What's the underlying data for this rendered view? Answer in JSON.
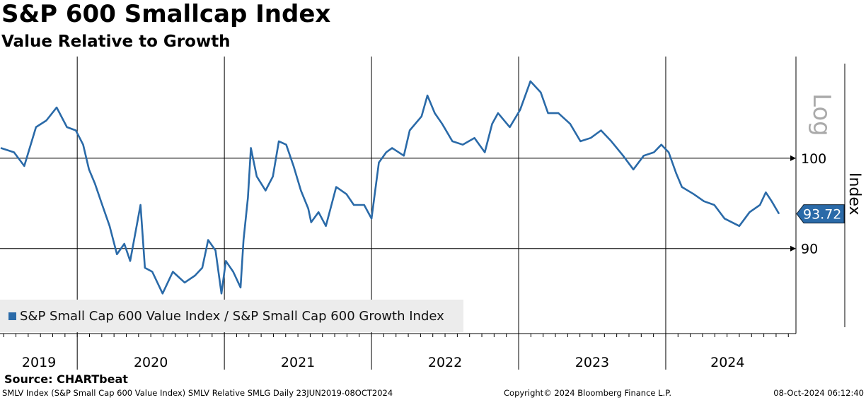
{
  "header": {
    "title": "S&P 600 Smallcap Index",
    "subtitle": "Value Relative to Growth"
  },
  "footer": {
    "source": "Source: CHARTbeat",
    "description": "SMLV Index (S&P Small Cap 600 Value Index) SMLV Relative SMLG  Daily 23JUN2019-08OCT2024",
    "copyright": "Copyright© 2024 Bloomberg Finance L.P.",
    "timestamp": "08-Oct-2024 06:12:40"
  },
  "colors": {
    "series": "#2a6aa8",
    "grid": "#000000",
    "legend_bg": "#ececec"
  },
  "chart_data": {
    "type": "line",
    "title": "S&P 600 Smallcap Index",
    "subtitle": "Value Relative to Growth",
    "ylabel": "Index",
    "yscale": "log",
    "yscale_label": "Log",
    "ylim": [
      81.5,
      112.6
    ],
    "yticks": [
      {
        "value": 90,
        "label": "90"
      },
      {
        "value": 100,
        "label": "100"
      }
    ],
    "xlim": [
      2019.475,
      2024.885
    ],
    "year_boundaries": [
      2020,
      2021,
      2022,
      2023,
      2024
    ],
    "xtick_labels": [
      {
        "x": 2019.74,
        "label": "2019"
      },
      {
        "x": 2020.5,
        "label": "2020"
      },
      {
        "x": 2021.5,
        "label": "2021"
      },
      {
        "x": 2022.5,
        "label": "2022"
      },
      {
        "x": 2023.5,
        "label": "2023"
      },
      {
        "x": 2024.42,
        "label": "2024"
      }
    ],
    "legend": {
      "position": "bottom-left",
      "entries": [
        "S&P Small Cap 600 Value Index / S&P Small Cap 600 Growth Index"
      ]
    },
    "last_value": {
      "value": 93.72,
      "label": "93.72"
    },
    "series": [
      {
        "name": "S&P Small Cap 600 Value Index / S&P Small Cap 600 Growth Index",
        "x": [
          2019.48,
          2019.57,
          2019.64,
          2019.72,
          2019.79,
          2019.86,
          2019.93,
          2019.99,
          2020.04,
          2020.08,
          2020.12,
          2020.17,
          2020.22,
          2020.27,
          2020.32,
          2020.36,
          2020.43,
          2020.46,
          2020.51,
          2020.58,
          2020.65,
          2020.73,
          2020.8,
          2020.85,
          2020.89,
          2020.94,
          2020.98,
          2021.01,
          2021.06,
          2021.11,
          2021.13,
          2021.16,
          2021.18,
          2021.22,
          2021.28,
          2021.33,
          2021.37,
          2021.42,
          2021.47,
          2021.52,
          2021.57,
          2021.59,
          2021.64,
          2021.69,
          2021.76,
          2021.83,
          2021.88,
          2021.95,
          2022.0,
          2022.05,
          2022.1,
          2022.14,
          2022.22,
          2022.26,
          2022.34,
          2022.38,
          2022.43,
          2022.48,
          2022.55,
          2022.62,
          2022.7,
          2022.77,
          2022.82,
          2022.86,
          2022.94,
          2023.01,
          2023.08,
          2023.15,
          2023.2,
          2023.27,
          2023.35,
          2023.42,
          2023.49,
          2023.56,
          2023.63,
          2023.71,
          2023.78,
          2023.85,
          2023.92,
          2023.97,
          2024.02,
          2024.07,
          2024.11,
          2024.19,
          2024.26,
          2024.33,
          2024.4,
          2024.5,
          2024.57,
          2024.64,
          2024.68,
          2024.72,
          2024.77
        ],
        "values": [
          101.2,
          100.7,
          99.1,
          103.7,
          104.5,
          106.1,
          103.7,
          103.3,
          101.6,
          98.7,
          97.1,
          94.7,
          92.4,
          89.4,
          90.5,
          88.7,
          94.7,
          88.0,
          87.6,
          85.4,
          87.6,
          86.5,
          87.2,
          88.0,
          90.9,
          89.8,
          85.4,
          88.7,
          87.6,
          86.0,
          90.9,
          95.5,
          101.2,
          97.9,
          96.3,
          97.9,
          102.0,
          101.6,
          99.1,
          96.3,
          94.3,
          92.8,
          93.9,
          92.4,
          96.7,
          95.9,
          94.7,
          94.7,
          93.2,
          99.5,
          100.7,
          101.2,
          100.3,
          103.3,
          105.0,
          107.6,
          105.4,
          104.1,
          102.0,
          101.6,
          102.4,
          100.7,
          104.1,
          105.4,
          103.7,
          105.8,
          109.4,
          108.0,
          105.4,
          105.4,
          104.1,
          102.0,
          102.4,
          103.3,
          102.0,
          100.3,
          98.7,
          100.3,
          100.7,
          101.6,
          100.7,
          98.3,
          96.7,
          95.9,
          95.1,
          94.7,
          93.2,
          92.4,
          93.9,
          94.7,
          96.1,
          95.1,
          93.72
        ]
      }
    ]
  }
}
